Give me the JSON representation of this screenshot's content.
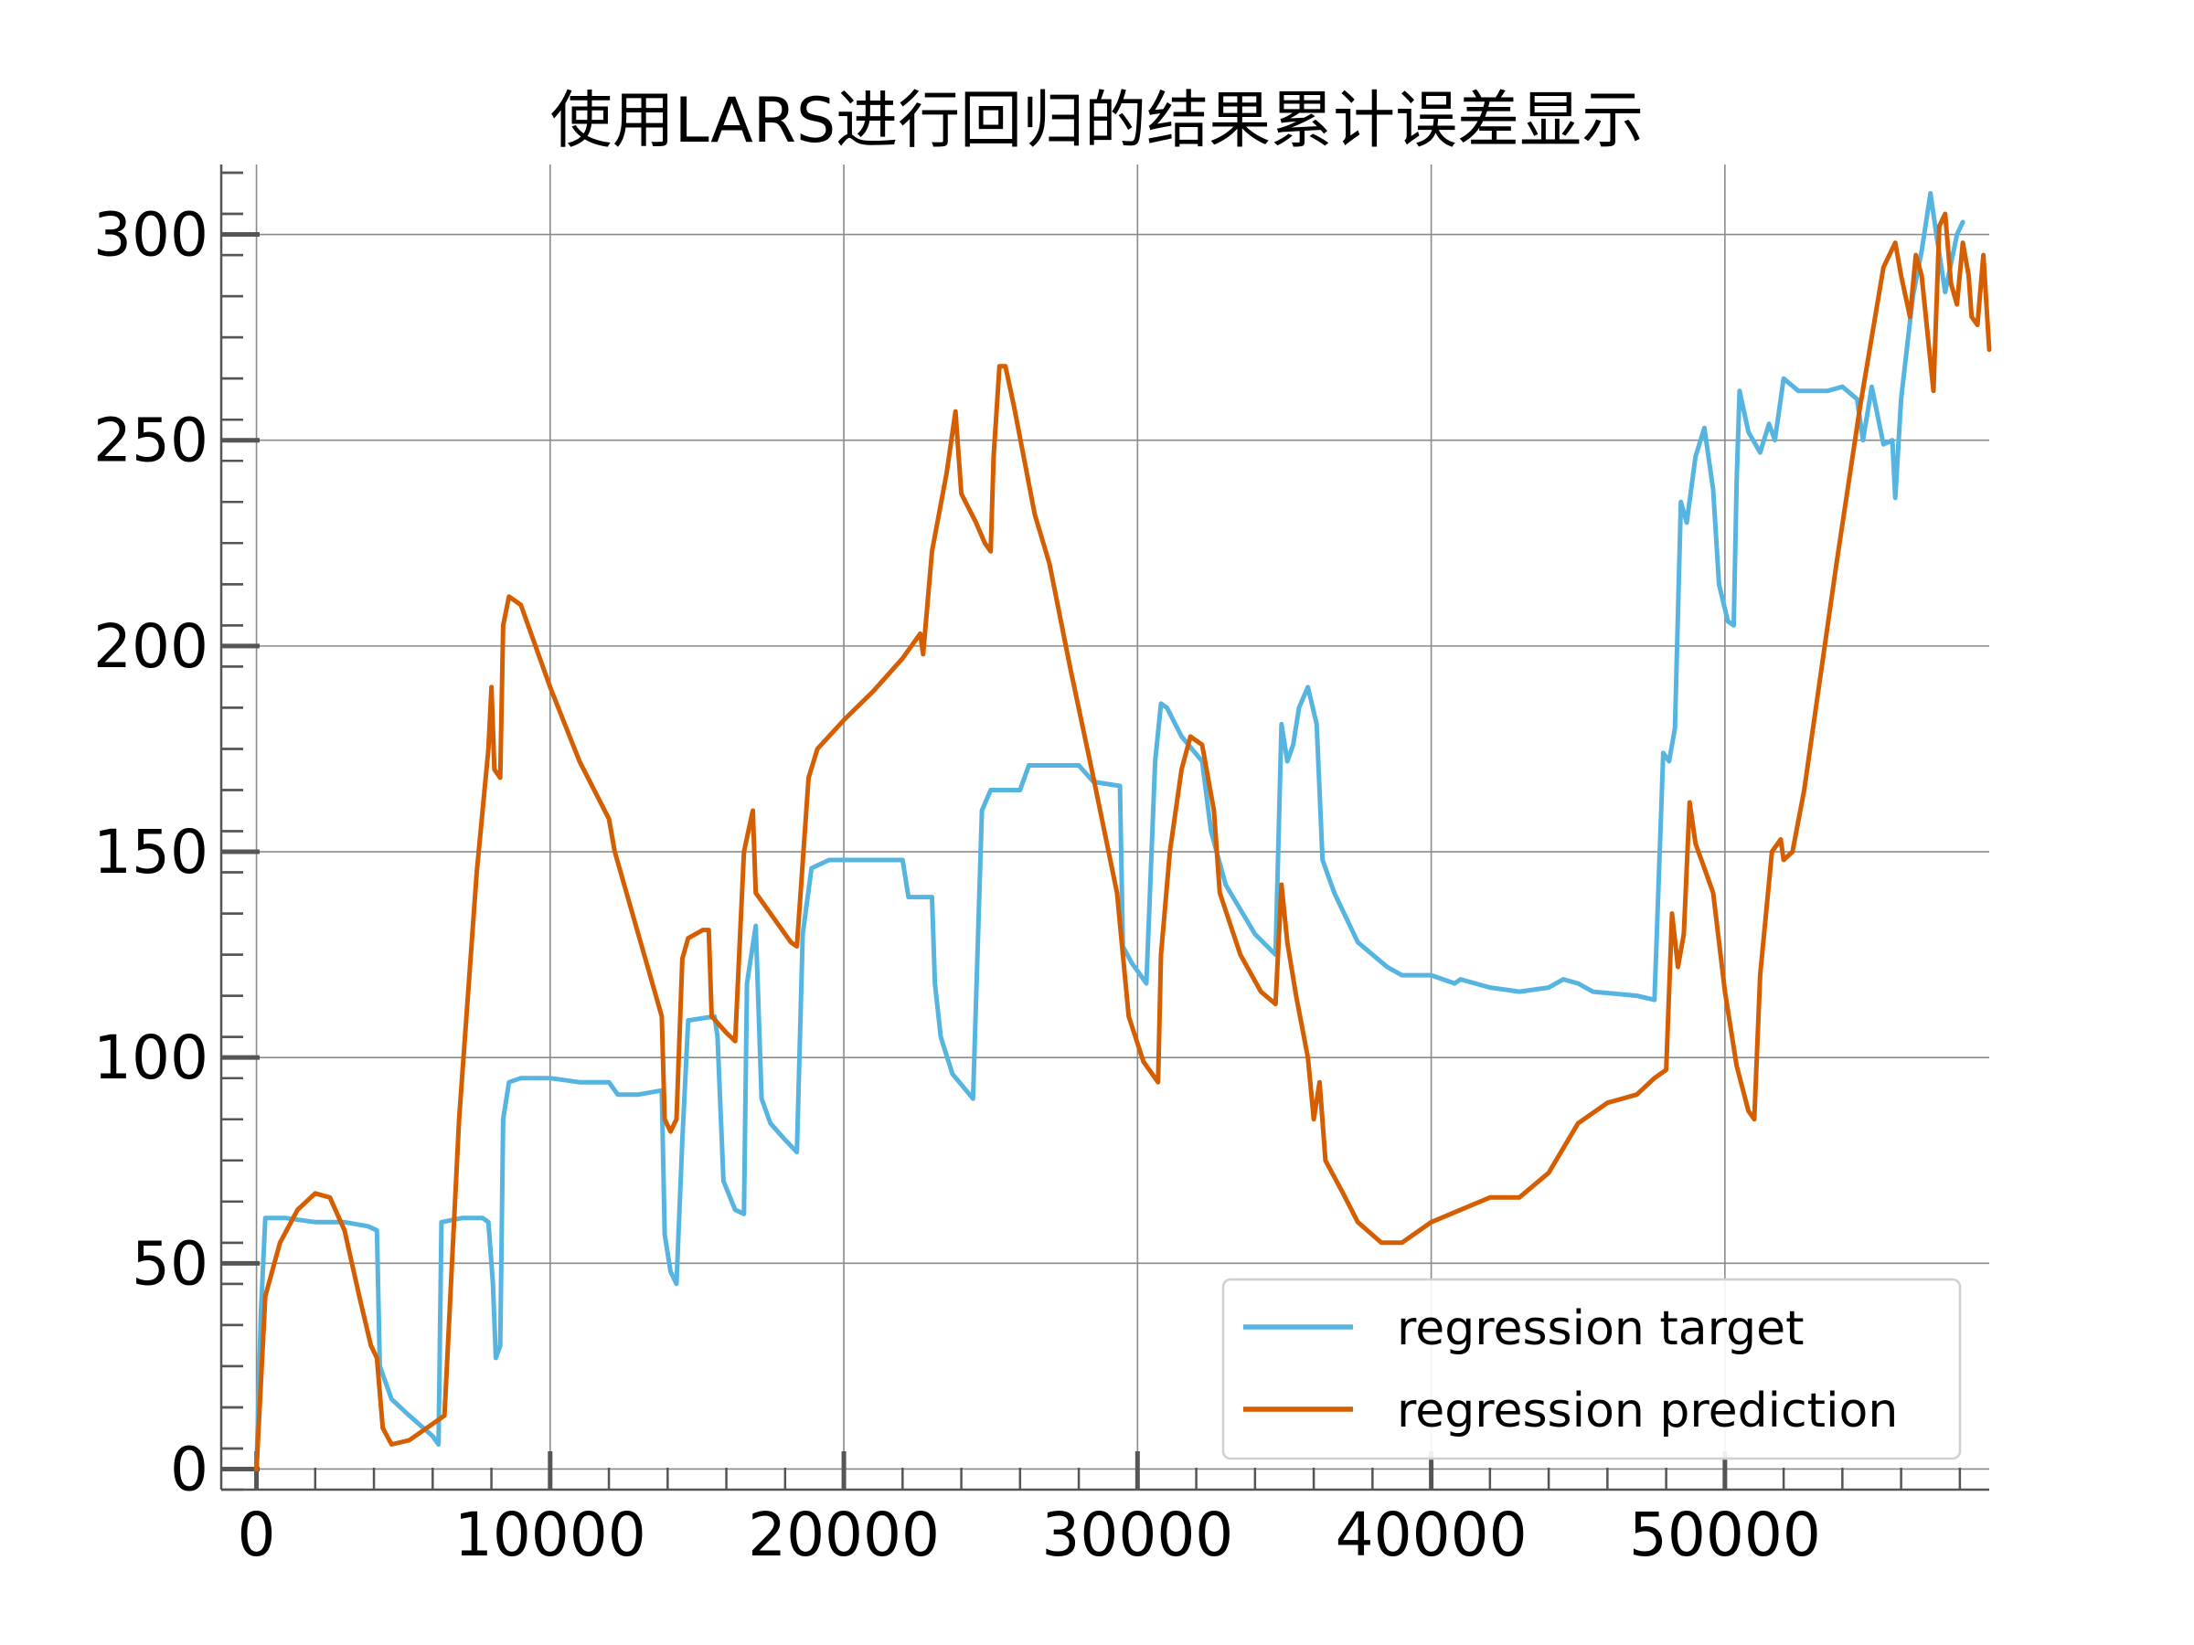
{
  "chart_data": {
    "type": "line",
    "title": "使用LARS进行回归的结果累计误差显示",
    "xlabel": "",
    "ylabel": "",
    "xlim": [
      -1200,
      59000
    ],
    "ylim": [
      -5,
      317
    ],
    "xticks": [
      0,
      10000,
      20000,
      30000,
      40000,
      50000
    ],
    "xtick_labels": [
      "0",
      "10000",
      "20000",
      "30000",
      "40000",
      "50000"
    ],
    "yticks": [
      0,
      50,
      100,
      150,
      200,
      250,
      300
    ],
    "ytick_labels": [
      "0",
      "50",
      "100",
      "150",
      "200",
      "250",
      "300"
    ],
    "grid": true,
    "legend_position": "lower-right",
    "series": [
      {
        "name": "regression target",
        "color": "#56b4e0",
        "points": [
          [
            0,
            0
          ],
          [
            150,
            38
          ],
          [
            300,
            61
          ],
          [
            1000,
            61
          ],
          [
            2000,
            60
          ],
          [
            3000,
            60
          ],
          [
            3800,
            59
          ],
          [
            4100,
            58
          ],
          [
            4200,
            25
          ],
          [
            4600,
            17
          ],
          [
            5200,
            13
          ],
          [
            6000,
            8
          ],
          [
            6200,
            6
          ],
          [
            6300,
            60
          ],
          [
            7000,
            61
          ],
          [
            7700,
            61
          ],
          [
            7900,
            60
          ],
          [
            8050,
            45
          ],
          [
            8150,
            27
          ],
          [
            8300,
            30
          ],
          [
            8400,
            85
          ],
          [
            8600,
            94
          ],
          [
            9000,
            95
          ],
          [
            10000,
            95
          ],
          [
            11000,
            94
          ],
          [
            12000,
            94
          ],
          [
            12300,
            91
          ],
          [
            13000,
            91
          ],
          [
            13800,
            92
          ],
          [
            13900,
            57
          ],
          [
            14100,
            48
          ],
          [
            14300,
            45
          ],
          [
            14500,
            80
          ],
          [
            14700,
            109
          ],
          [
            15600,
            110
          ],
          [
            15700,
            105
          ],
          [
            15900,
            70
          ],
          [
            16300,
            63
          ],
          [
            16600,
            62
          ],
          [
            16700,
            118
          ],
          [
            17000,
            132
          ],
          [
            17200,
            90
          ],
          [
            17500,
            84
          ],
          [
            18000,
            80
          ],
          [
            18400,
            77
          ],
          [
            18600,
            130
          ],
          [
            18900,
            146
          ],
          [
            19500,
            148
          ],
          [
            20500,
            148
          ],
          [
            22000,
            148
          ],
          [
            22200,
            139
          ],
          [
            23000,
            139
          ],
          [
            23100,
            118
          ],
          [
            23300,
            105
          ],
          [
            23700,
            96
          ],
          [
            24400,
            90
          ],
          [
            24700,
            160
          ],
          [
            25000,
            165
          ],
          [
            26000,
            165
          ],
          [
            26300,
            171
          ],
          [
            27000,
            171
          ],
          [
            28000,
            171
          ],
          [
            28500,
            167
          ],
          [
            29400,
            166
          ],
          [
            29500,
            127
          ],
          [
            29800,
            123
          ],
          [
            30100,
            120
          ],
          [
            30300,
            118
          ],
          [
            30600,
            172
          ],
          [
            30800,
            186
          ],
          [
            31000,
            185
          ],
          [
            31500,
            178
          ],
          [
            32200,
            172
          ],
          [
            32500,
            155
          ],
          [
            33000,
            142
          ],
          [
            34000,
            130
          ],
          [
            34700,
            125
          ],
          [
            34900,
            181
          ],
          [
            35100,
            172
          ],
          [
            35300,
            176
          ],
          [
            35500,
            185
          ],
          [
            35800,
            190
          ],
          [
            36100,
            181
          ],
          [
            36300,
            148
          ],
          [
            36700,
            140
          ],
          [
            37500,
            128
          ],
          [
            38500,
            122
          ],
          [
            39000,
            120
          ],
          [
            40000,
            120
          ],
          [
            40800,
            118
          ],
          [
            41000,
            119
          ],
          [
            42000,
            117
          ],
          [
            43000,
            116
          ],
          [
            44000,
            117
          ],
          [
            44500,
            119
          ],
          [
            45000,
            118
          ],
          [
            45500,
            116
          ],
          [
            47000,
            115
          ],
          [
            47600,
            114
          ],
          [
            47900,
            174
          ],
          [
            48100,
            172
          ],
          [
            48300,
            180
          ],
          [
            48500,
            235
          ],
          [
            48700,
            230
          ],
          [
            49000,
            246
          ],
          [
            49300,
            253
          ],
          [
            49600,
            238
          ],
          [
            49800,
            215
          ],
          [
            50100,
            206
          ],
          [
            50300,
            205
          ],
          [
            50400,
            240
          ],
          [
            50500,
            262
          ],
          [
            50800,
            252
          ],
          [
            51200,
            247
          ],
          [
            51500,
            254
          ],
          [
            51700,
            250
          ],
          [
            52000,
            265
          ],
          [
            52500,
            262
          ],
          [
            53500,
            262
          ],
          [
            54000,
            263
          ],
          [
            54500,
            260
          ],
          [
            54700,
            250
          ],
          [
            55000,
            263
          ],
          [
            55400,
            249
          ],
          [
            55700,
            250
          ],
          [
            55800,
            236
          ],
          [
            56000,
            260
          ],
          [
            56400,
            285
          ],
          [
            56700,
            296
          ],
          [
            57000,
            310
          ],
          [
            57200,
            300
          ],
          [
            57500,
            286
          ],
          [
            57900,
            300
          ],
          [
            58100,
            303
          ]
        ]
      },
      {
        "name": "regression prediction",
        "color": "#d55e00",
        "points": [
          [
            0,
            0
          ],
          [
            300,
            42
          ],
          [
            800,
            55
          ],
          [
            1400,
            63
          ],
          [
            2000,
            67
          ],
          [
            2500,
            66
          ],
          [
            3000,
            58
          ],
          [
            3500,
            42
          ],
          [
            3900,
            30
          ],
          [
            4100,
            27
          ],
          [
            4300,
            10
          ],
          [
            4600,
            6
          ],
          [
            5200,
            7
          ],
          [
            6000,
            11
          ],
          [
            6400,
            13
          ],
          [
            6900,
            85
          ],
          [
            7500,
            145
          ],
          [
            7900,
            175
          ],
          [
            8000,
            190
          ],
          [
            8100,
            170
          ],
          [
            8300,
            168
          ],
          [
            8400,
            205
          ],
          [
            8600,
            212
          ],
          [
            9000,
            210
          ],
          [
            10000,
            190
          ],
          [
            11000,
            172
          ],
          [
            12000,
            158
          ],
          [
            12200,
            150
          ],
          [
            13000,
            130
          ],
          [
            13800,
            110
          ],
          [
            13900,
            85
          ],
          [
            14100,
            82
          ],
          [
            14300,
            85
          ],
          [
            14500,
            124
          ],
          [
            14700,
            129
          ],
          [
            15200,
            131
          ],
          [
            15400,
            131
          ],
          [
            15500,
            110
          ],
          [
            16000,
            106
          ],
          [
            16300,
            104
          ],
          [
            16600,
            150
          ],
          [
            16900,
            160
          ],
          [
            17000,
            140
          ],
          [
            17500,
            135
          ],
          [
            18200,
            128
          ],
          [
            18400,
            127
          ],
          [
            18800,
            168
          ],
          [
            19100,
            175
          ],
          [
            20000,
            182
          ],
          [
            21000,
            189
          ],
          [
            22000,
            197
          ],
          [
            22600,
            203
          ],
          [
            22700,
            198
          ],
          [
            23000,
            223
          ],
          [
            23500,
            242
          ],
          [
            23800,
            257
          ],
          [
            24000,
            237
          ],
          [
            24500,
            230
          ],
          [
            24800,
            225
          ],
          [
            25000,
            223
          ],
          [
            25100,
            246
          ],
          [
            25300,
            268
          ],
          [
            25500,
            268
          ],
          [
            25800,
            258
          ],
          [
            26500,
            232
          ],
          [
            27000,
            220
          ],
          [
            27700,
            195
          ],
          [
            28500,
            168
          ],
          [
            29300,
            140
          ],
          [
            29700,
            110
          ],
          [
            30200,
            99
          ],
          [
            30700,
            94
          ],
          [
            30800,
            125
          ],
          [
            31100,
            150
          ],
          [
            31500,
            170
          ],
          [
            31800,
            178
          ],
          [
            32200,
            176
          ],
          [
            32600,
            160
          ],
          [
            32800,
            140
          ],
          [
            33500,
            125
          ],
          [
            34200,
            116
          ],
          [
            34700,
            113
          ],
          [
            34900,
            142
          ],
          [
            35100,
            128
          ],
          [
            35400,
            115
          ],
          [
            35800,
            100
          ],
          [
            36000,
            85
          ],
          [
            36200,
            94
          ],
          [
            36400,
            75
          ],
          [
            37000,
            67
          ],
          [
            37500,
            60
          ],
          [
            38300,
            55
          ],
          [
            39000,
            55
          ],
          [
            40000,
            60
          ],
          [
            41000,
            63
          ],
          [
            42000,
            66
          ],
          [
            43000,
            66
          ],
          [
            44000,
            72
          ],
          [
            44500,
            78
          ],
          [
            45000,
            84
          ],
          [
            46000,
            89
          ],
          [
            47000,
            91
          ],
          [
            47600,
            95
          ],
          [
            48000,
            97
          ],
          [
            48200,
            135
          ],
          [
            48400,
            122
          ],
          [
            48600,
            130
          ],
          [
            48800,
            162
          ],
          [
            49000,
            152
          ],
          [
            49300,
            146
          ],
          [
            49600,
            140
          ],
          [
            50000,
            116
          ],
          [
            50400,
            98
          ],
          [
            50800,
            87
          ],
          [
            51000,
            85
          ],
          [
            51200,
            120
          ],
          [
            51600,
            150
          ],
          [
            51900,
            153
          ],
          [
            52000,
            148
          ],
          [
            52300,
            150
          ],
          [
            52700,
            165
          ],
          [
            53000,
            180
          ],
          [
            53800,
            220
          ],
          [
            54600,
            258
          ],
          [
            55400,
            292
          ],
          [
            55800,
            298
          ],
          [
            56000,
            290
          ],
          [
            56300,
            280
          ],
          [
            56500,
            295
          ],
          [
            56700,
            290
          ],
          [
            56900,
            276
          ],
          [
            57100,
            262
          ],
          [
            57300,
            302
          ],
          [
            57500,
            305
          ],
          [
            57700,
            288
          ],
          [
            57900,
            283
          ],
          [
            58100,
            298
          ],
          [
            58300,
            290
          ],
          [
            58400,
            280
          ],
          [
            58600,
            278
          ],
          [
            58800,
            295
          ],
          [
            59000,
            272
          ]
        ]
      }
    ]
  }
}
